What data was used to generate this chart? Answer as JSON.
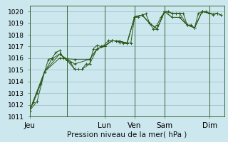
{
  "title": "Pression niveau de la mer( hPa )",
  "bg_color": "#cce8ee",
  "grid_color": "#99bbcc",
  "line_color": "#2d5a1b",
  "ylim": [
    1011,
    1020.5
  ],
  "yticks": [
    1011,
    1012,
    1013,
    1014,
    1015,
    1016,
    1017,
    1018,
    1019,
    1020
  ],
  "ylabel_fontsize": 6.5,
  "xlabel_fontsize": 7.5,
  "xlim": [
    0,
    312
  ],
  "day_labels": [
    "Jeu",
    "Lun",
    "Ven",
    "Sam",
    "Dim"
  ],
  "day_positions": [
    0,
    120,
    168,
    216,
    288
  ],
  "vline_positions": [
    60,
    120,
    168,
    216,
    288
  ],
  "series": [
    [
      0,
      1011.5,
      6,
      1012.2,
      12,
      1013.0,
      18,
      1013.8,
      24,
      1014.85,
      30,
      1015.9,
      36,
      1016.0,
      42,
      1016.5,
      48,
      1016.65,
      54,
      1016.0,
      60,
      1015.85,
      66,
      1015.6,
      72,
      1015.05,
      78,
      1015.05,
      84,
      1015.05,
      90,
      1015.5,
      96,
      1015.5,
      102,
      1016.8,
      108,
      1017.1,
      114,
      1017.0,
      120,
      1017.15,
      126,
      1017.5,
      132,
      1017.5,
      138,
      1017.45,
      144,
      1017.35,
      150,
      1017.3,
      156,
      1017.3,
      162,
      1017.3,
      168,
      1019.55,
      174,
      1019.55,
      180,
      1019.7,
      186,
      1019.8,
      192,
      1019.0,
      198,
      1018.5,
      204,
      1018.85,
      210,
      1019.5,
      216,
      1020.0,
      222,
      1020.0,
      228,
      1019.85,
      234,
      1019.85,
      240,
      1019.85,
      246,
      1019.85,
      252,
      1018.85,
      258,
      1018.85,
      264,
      1018.6,
      270,
      1019.85,
      276,
      1020.0,
      282,
      1020.0,
      288,
      1019.85,
      294,
      1019.7,
      300,
      1019.85,
      306,
      1019.7
    ],
    [
      0,
      1011.5,
      12,
      1012.3,
      24,
      1014.85,
      36,
      1015.95,
      48,
      1016.35,
      60,
      1015.8,
      72,
      1015.05,
      84,
      1015.05,
      96,
      1015.5,
      108,
      1016.8,
      120,
      1017.05,
      132,
      1017.5,
      144,
      1017.45,
      156,
      1017.3,
      168,
      1019.55,
      180,
      1019.7,
      192,
      1019.0,
      204,
      1018.5,
      216,
      1020.0,
      228,
      1019.85,
      240,
      1019.85,
      252,
      1018.85,
      264,
      1018.6,
      276,
      1020.0,
      288,
      1019.85,
      300,
      1019.85,
      306,
      1019.7
    ],
    [
      0,
      1011.5,
      24,
      1014.85,
      48,
      1016.35,
      72,
      1015.5,
      96,
      1015.9,
      108,
      1016.8,
      120,
      1017.05,
      132,
      1017.5,
      144,
      1017.45,
      156,
      1017.3,
      168,
      1019.55,
      180,
      1019.7,
      192,
      1019.0,
      204,
      1018.5,
      216,
      1020.0,
      228,
      1019.5,
      240,
      1019.5,
      252,
      1018.85,
      264,
      1018.6,
      276,
      1020.0,
      288,
      1019.85
    ],
    [
      0,
      1011.5,
      24,
      1014.85,
      48,
      1016.0,
      72,
      1015.9,
      96,
      1015.9,
      108,
      1016.8,
      120,
      1017.0,
      132,
      1017.5,
      144,
      1017.45,
      156,
      1017.3,
      168,
      1019.55,
      180,
      1019.7,
      192,
      1019.0,
      204,
      1018.5,
      216,
      1020.0,
      228,
      1019.5,
      240,
      1019.5,
      252,
      1018.85,
      264,
      1018.6,
      276,
      1020.0,
      288,
      1019.85
    ]
  ]
}
